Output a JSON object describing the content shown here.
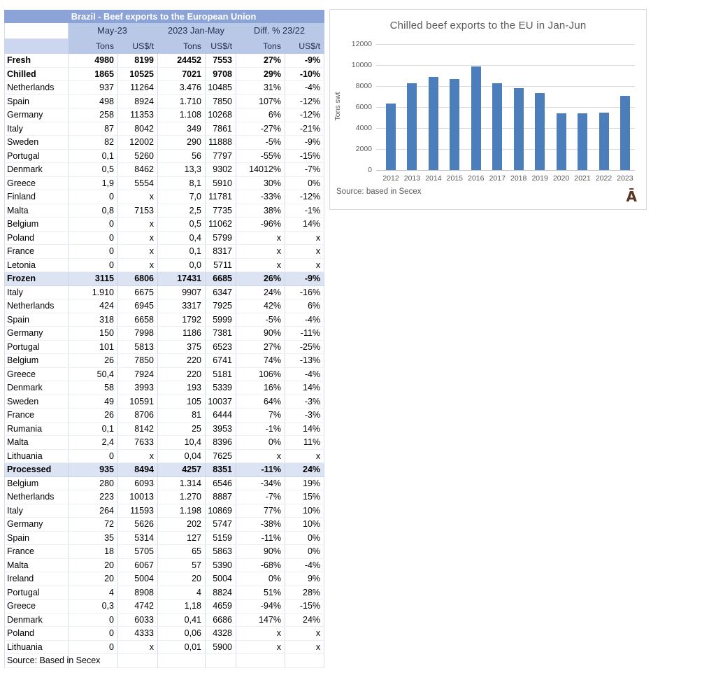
{
  "table": {
    "title": "Brazil - Beef exports to the European Union",
    "column_groups": [
      "May-23",
      "2023 Jan-May",
      "Diff. % 23/22"
    ],
    "sub_headers": [
      "Tons",
      "US$/t",
      "Tons",
      "US$/t",
      "Tons",
      "US$/t"
    ],
    "rows": [
      {
        "label": "Fresh",
        "values": [
          "4980",
          "8199",
          "24452",
          "7553",
          "27%",
          "-9%"
        ],
        "style": "bold"
      },
      {
        "label": "Chilled",
        "values": [
          "1865",
          "10525",
          "7021",
          "9708",
          "29%",
          "-10%"
        ],
        "style": "bold"
      },
      {
        "label": "Netherlands",
        "values": [
          "937",
          "11264",
          "3.476",
          "10485",
          "31%",
          "-4%"
        ],
        "style": "normal"
      },
      {
        "label": "Spain",
        "values": [
          "498",
          "8924",
          "1.710",
          "7850",
          "107%",
          "-12%"
        ],
        "style": "normal"
      },
      {
        "label": "Germany",
        "values": [
          "258",
          "11353",
          "1.108",
          "10268",
          "6%",
          "-12%"
        ],
        "style": "normal"
      },
      {
        "label": "Italy",
        "values": [
          "87",
          "8042",
          "349",
          "7861",
          "-27%",
          "-21%"
        ],
        "style": "normal"
      },
      {
        "label": "Sweden",
        "values": [
          "82",
          "12002",
          "290",
          "11888",
          "-5%",
          "-9%"
        ],
        "style": "normal"
      },
      {
        "label": "Portugal",
        "values": [
          "0,1",
          "5260",
          "56",
          "7797",
          "-55%",
          "-15%"
        ],
        "style": "normal"
      },
      {
        "label": "Denmark",
        "values": [
          "0,5",
          "8462",
          "13,3",
          "9302",
          "14012%",
          "-7%"
        ],
        "style": "normal"
      },
      {
        "label": "Greece",
        "values": [
          "1,9",
          "5554",
          "8,1",
          "5910",
          "30%",
          "0%"
        ],
        "style": "normal"
      },
      {
        "label": "Finland",
        "values": [
          "0",
          "x",
          "7,0",
          "11781",
          "-33%",
          "-12%"
        ],
        "style": "normal"
      },
      {
        "label": "Malta",
        "values": [
          "0,8",
          "7153",
          "2,5",
          "7735",
          "38%",
          "-1%"
        ],
        "style": "normal"
      },
      {
        "label": "Belgium",
        "values": [
          "0",
          "x",
          "0,5",
          "11062",
          "-96%",
          "14%"
        ],
        "style": "normal"
      },
      {
        "label": "Poland",
        "values": [
          "0",
          "x",
          "0,4",
          "5799",
          "x",
          "x"
        ],
        "style": "normal"
      },
      {
        "label": "France",
        "values": [
          "0",
          "x",
          "0,1",
          "8317",
          "x",
          "x"
        ],
        "style": "normal"
      },
      {
        "label": "Letonia",
        "values": [
          "0",
          "x",
          "0,0",
          "5711",
          "x",
          "x"
        ],
        "style": "normal"
      },
      {
        "label": "Frozen",
        "values": [
          "3115",
          "6806",
          "17431",
          "6685",
          "26%",
          "-9%"
        ],
        "style": "section"
      },
      {
        "label": "Italy",
        "values": [
          "1.910",
          "6675",
          "9907",
          "6347",
          "24%",
          "-16%"
        ],
        "style": "normal"
      },
      {
        "label": "Netherlands",
        "values": [
          "424",
          "6945",
          "3317",
          "7925",
          "42%",
          "6%"
        ],
        "style": "normal"
      },
      {
        "label": "Spain",
        "values": [
          "318",
          "6658",
          "1792",
          "5999",
          "-5%",
          "-4%"
        ],
        "style": "normal"
      },
      {
        "label": "Germany",
        "values": [
          "150",
          "7998",
          "1186",
          "7381",
          "90%",
          "-11%"
        ],
        "style": "normal"
      },
      {
        "label": "Portugal",
        "values": [
          "101",
          "5813",
          "375",
          "6523",
          "27%",
          "-25%"
        ],
        "style": "normal"
      },
      {
        "label": "Belgium",
        "values": [
          "26",
          "7850",
          "220",
          "6741",
          "74%",
          "-13%"
        ],
        "style": "normal"
      },
      {
        "label": "Greece",
        "values": [
          "50,4",
          "7924",
          "220",
          "5181",
          "106%",
          "-4%"
        ],
        "style": "normal"
      },
      {
        "label": "Denmark",
        "values": [
          "58",
          "3993",
          "193",
          "5339",
          "16%",
          "14%"
        ],
        "style": "normal"
      },
      {
        "label": "Sweden",
        "values": [
          "49",
          "10591",
          "105",
          "10037",
          "64%",
          "-3%"
        ],
        "style": "normal"
      },
      {
        "label": "France",
        "values": [
          "26",
          "8706",
          "81",
          "6444",
          "7%",
          "-3%"
        ],
        "style": "normal"
      },
      {
        "label": "Rumania",
        "values": [
          "0,1",
          "8142",
          "25",
          "3953",
          "-1%",
          "14%"
        ],
        "style": "normal"
      },
      {
        "label": "Malta",
        "values": [
          "2,4",
          "7633",
          "10,4",
          "8396",
          "0%",
          "11%"
        ],
        "style": "normal"
      },
      {
        "label": "Lithuania",
        "values": [
          "0",
          "x",
          "0,04",
          "7625",
          "x",
          "x"
        ],
        "style": "normal"
      },
      {
        "label": "Processed",
        "values": [
          "935",
          "8494",
          "4257",
          "8351",
          "-11%",
          "24%"
        ],
        "style": "section"
      },
      {
        "label": "Belgium",
        "values": [
          "280",
          "6093",
          "1.314",
          "6546",
          "-34%",
          "19%"
        ],
        "style": "normal"
      },
      {
        "label": "Netherlands",
        "values": [
          "223",
          "10013",
          "1.270",
          "8887",
          "-7%",
          "15%"
        ],
        "style": "normal"
      },
      {
        "label": "Italy",
        "values": [
          "264",
          "11593",
          "1.198",
          "10869",
          "77%",
          "10%"
        ],
        "style": "normal"
      },
      {
        "label": "Germany",
        "values": [
          "72",
          "5626",
          "202",
          "5747",
          "-38%",
          "10%"
        ],
        "style": "normal"
      },
      {
        "label": "Spain",
        "values": [
          "35",
          "5314",
          "127",
          "5159",
          "-11%",
          "0%"
        ],
        "style": "normal"
      },
      {
        "label": "France",
        "values": [
          "18",
          "5705",
          "65",
          "5863",
          "90%",
          "0%"
        ],
        "style": "normal"
      },
      {
        "label": "Malta",
        "values": [
          "20",
          "6067",
          "57",
          "5390",
          "-68%",
          "-4%"
        ],
        "style": "normal"
      },
      {
        "label": "Ireland",
        "values": [
          "20",
          "5004",
          "20",
          "5004",
          "0%",
          "9%"
        ],
        "style": "normal"
      },
      {
        "label": "Portugal",
        "values": [
          "4",
          "8908",
          "4",
          "8824",
          "51%",
          "28%"
        ],
        "style": "normal"
      },
      {
        "label": "Greece",
        "values": [
          "0,3",
          "4742",
          "1,18",
          "4659",
          "-94%",
          "-15%"
        ],
        "style": "normal"
      },
      {
        "label": "Denmark",
        "values": [
          "0",
          "6033",
          "0,41",
          "6686",
          "147%",
          "24%"
        ],
        "style": "normal"
      },
      {
        "label": "Poland",
        "values": [
          "0",
          "4333",
          "0,06",
          "4328",
          "x",
          "x"
        ],
        "style": "normal"
      },
      {
        "label": "Lithuania",
        "values": [
          "0",
          "x",
          "0,01",
          "5900",
          "x",
          "x"
        ],
        "style": "normal"
      }
    ],
    "source": "Source: Based in Secex"
  },
  "chart": {
    "title": "Chilled beef exports to the EU in Jan-Jun",
    "y_axis_label": "Tons swt",
    "source": "Source: based in Secex",
    "corner_glyph": "Ā"
  },
  "chart_data": {
    "type": "bar",
    "title": "Chilled beef exports to the EU in Jan-Jun",
    "categories": [
      "2012",
      "2013",
      "2014",
      "2015",
      "2016",
      "2017",
      "2018",
      "2019",
      "2020",
      "2021",
      "2022",
      "2023"
    ],
    "values": [
      6350,
      8250,
      8850,
      8700,
      9850,
      8250,
      7800,
      7350,
      5400,
      5400,
      5500,
      7050
    ],
    "xlabel": "",
    "ylabel": "Tons swt",
    "ylim": [
      0,
      12000
    ],
    "yticks": [
      0,
      2000,
      4000,
      6000,
      8000,
      10000,
      12000
    ],
    "grid": true,
    "legend": false,
    "bar_color": "#4d7ebc"
  },
  "colors": {
    "title_bar_bg": "#8ca3d8",
    "header_bg": "#b9c8e6",
    "label_header_bg": "#ccd6ee",
    "section_row_bg": "#dce3f3",
    "bar_color": "#4d7ebc",
    "chart_text": "#595959",
    "corner_glyph_color": "#5a3622"
  }
}
